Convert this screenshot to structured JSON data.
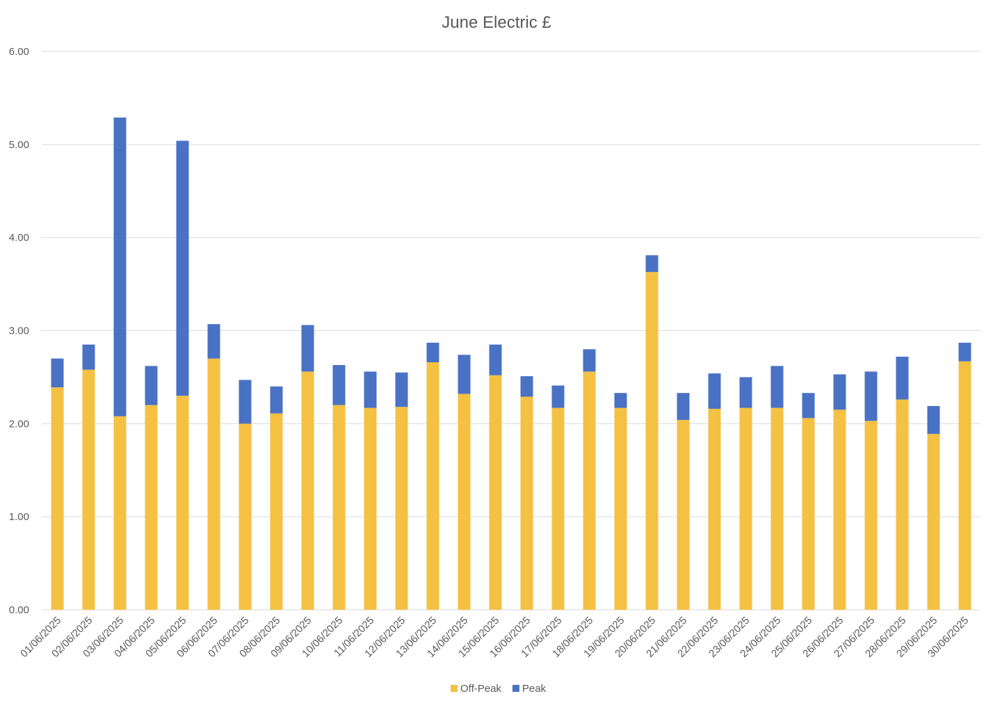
{
  "chart_data": {
    "type": "bar",
    "stacked": true,
    "title": "June Electric £",
    "xlabel": "",
    "ylabel": "",
    "ylim": [
      0,
      6
    ],
    "yticks": [
      "0.00",
      "1.00",
      "2.00",
      "3.00",
      "4.00",
      "5.00",
      "6.00"
    ],
    "grid": true,
    "legend_position": "bottom",
    "categories": [
      "01/06/2025",
      "02/06/2025",
      "03/06/2025",
      "04/06/2025",
      "05/06/2025",
      "06/06/2025",
      "07/06/2025",
      "08/06/2025",
      "09/06/2025",
      "10/06/2025",
      "11/06/2025",
      "12/06/2025",
      "13/06/2025",
      "14/06/2025",
      "15/06/2025",
      "16/06/2025",
      "17/06/2025",
      "18/06/2025",
      "19/06/2025",
      "20/06/2025",
      "21/06/2025",
      "22/06/2025",
      "23/06/2025",
      "24/06/2025",
      "25/06/2025",
      "26/06/2025",
      "27/06/2025",
      "28/06/2025",
      "29/06/2025",
      "30/06/2025"
    ],
    "series": [
      {
        "name": "Off-Peak",
        "color": "#f4c143",
        "values": [
          2.39,
          2.58,
          2.08,
          2.2,
          2.3,
          2.7,
          2.0,
          2.11,
          2.56,
          2.2,
          2.17,
          2.18,
          2.66,
          2.32,
          2.52,
          2.29,
          2.17,
          2.56,
          2.17,
          3.63,
          2.04,
          2.16,
          2.17,
          2.17,
          2.06,
          2.15,
          2.03,
          2.26,
          1.89,
          2.67
        ]
      },
      {
        "name": "Peak",
        "color": "#4a72c4",
        "values": [
          0.31,
          0.27,
          3.21,
          0.42,
          2.74,
          0.37,
          0.47,
          0.29,
          0.5,
          0.43,
          0.39,
          0.37,
          0.21,
          0.42,
          0.33,
          0.22,
          0.24,
          0.24,
          0.16,
          0.18,
          0.29,
          0.38,
          0.33,
          0.45,
          0.27,
          0.38,
          0.53,
          0.46,
          0.3,
          0.2
        ]
      }
    ]
  }
}
